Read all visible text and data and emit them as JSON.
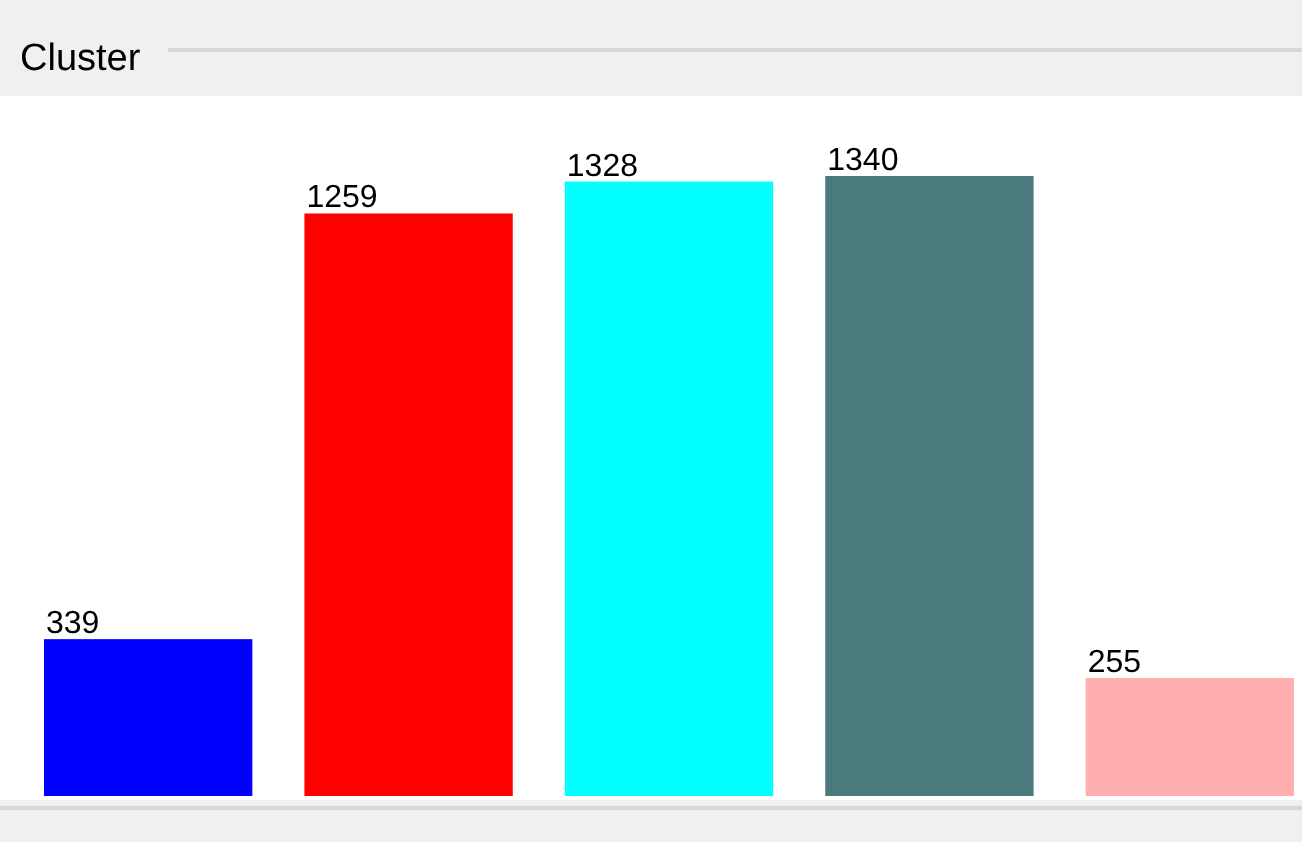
{
  "chart_data": {
    "type": "bar",
    "title": "Cluster",
    "categories": [
      null,
      null,
      null,
      null,
      null
    ],
    "values": [
      339,
      1259,
      1328,
      1340,
      255
    ],
    "colors": [
      "#0000ff",
      "#ff0000",
      "#00ffff",
      "#4a7a7e",
      "#ffafaf"
    ],
    "data_labels": true
  }
}
